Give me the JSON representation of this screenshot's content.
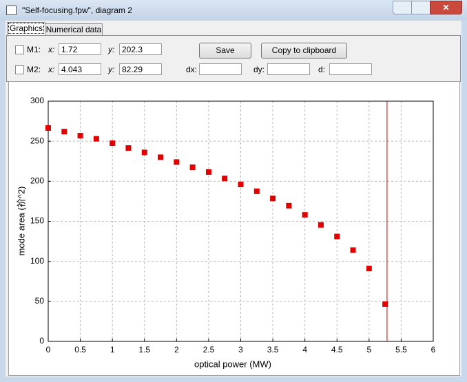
{
  "window": {
    "title": "\"Self-focusing.fpw\", diagram 2"
  },
  "tabs": [
    "Graphics",
    "Numerical data"
  ],
  "markers": [
    {
      "label": "M1:",
      "x_label": "x:",
      "x": "1.72",
      "y_label": "y:",
      "y": "202.3"
    },
    {
      "label": "M2:",
      "x_label": "x:",
      "x": "4.043",
      "y_label": "y:",
      "y": "82.29"
    }
  ],
  "buttons": [
    "Save",
    "Copy to clipboard"
  ],
  "deltas": [
    "dx:",
    "dy:",
    "d:"
  ],
  "chart_data": {
    "type": "scatter",
    "x_label": "optical power (MW)",
    "y_label": "mode area (祄^2)",
    "x": [
      0,
      0.25,
      0.5,
      0.75,
      1,
      1.25,
      1.5,
      1.75,
      2,
      2.25,
      2.5,
      2.75,
      3,
      3.25,
      3.5,
      3.75,
      4,
      4.25,
      4.5,
      4.75,
      5,
      5.25
    ],
    "values": [
      266.5,
      262,
      257,
      253,
      247.5,
      241.5,
      236,
      230,
      224,
      217.5,
      211.5,
      203.5,
      196,
      187.5,
      178.5,
      169.5,
      158,
      145.5,
      131,
      114,
      91,
      46.5
    ],
    "color": "#e00000",
    "marker_line_x": 5.28,
    "marker_line_color": "#c00000",
    "xlim": [
      0,
      6
    ],
    "xticks": [
      0,
      0.5,
      1,
      1.5,
      2,
      2.5,
      3,
      3.5,
      4,
      4.5,
      5,
      5.5,
      6
    ],
    "ylim": [
      0,
      300
    ],
    "yticks": [
      0,
      50,
      100,
      150,
      200,
      250,
      300
    ],
    "grid": true
  }
}
